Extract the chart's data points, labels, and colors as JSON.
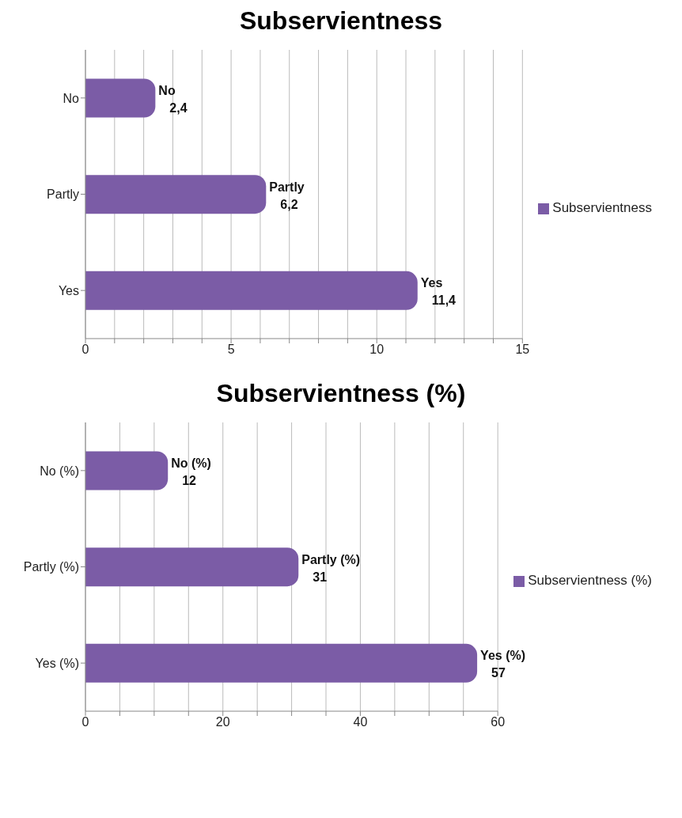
{
  "chart_data": [
    {
      "type": "bar",
      "orientation": "horizontal",
      "title": "Subservientness",
      "categories": [
        "No",
        "Partly",
        "Yes"
      ],
      "series": [
        {
          "name": "Subservientness",
          "color": "#7b5ca6",
          "values": [
            2.4,
            6.2,
            11.4
          ],
          "value_labels": [
            "2,4",
            "6,2",
            "11,4"
          ]
        }
      ],
      "xlim": [
        0,
        15
      ],
      "xticks": [
        0,
        {
          "value": 1,
          "label": null
        },
        {
          "value": 2,
          "label": null
        },
        {
          "value": 3,
          "label": null
        },
        {
          "value": 4,
          "label": null
        },
        5,
        {
          "value": 6,
          "label": null
        },
        {
          "value": 7,
          "label": null
        },
        {
          "value": 8,
          "label": null
        },
        {
          "value": 9,
          "label": null
        },
        10,
        {
          "value": 11,
          "label": null
        },
        {
          "value": 12,
          "label": null
        },
        {
          "value": 13,
          "label": null
        },
        {
          "value": 14,
          "label": null
        },
        15
      ],
      "grid": "x",
      "legend": "right"
    },
    {
      "type": "bar",
      "orientation": "horizontal",
      "title": "Subservientness (%)",
      "categories": [
        "No (%)",
        "Partly (%)",
        "Yes (%)"
      ],
      "series": [
        {
          "name": "Subservientness (%)",
          "color": "#7b5ca6",
          "values": [
            12,
            31,
            57
          ],
          "value_labels": [
            "12",
            "31",
            "57"
          ]
        }
      ],
      "xlim": [
        0,
        60
      ],
      "xticks": [
        0,
        {
          "value": 5,
          "label": null
        },
        {
          "value": 10,
          "label": null
        },
        {
          "value": 15,
          "label": null
        },
        20,
        {
          "value": 25,
          "label": null
        },
        {
          "value": 30,
          "label": null
        },
        {
          "value": 35,
          "label": null
        },
        40,
        {
          "value": 45,
          "label": null
        },
        {
          "value": 50,
          "label": null
        },
        {
          "value": 55,
          "label": null
        },
        60
      ],
      "grid": "x",
      "legend": "right"
    }
  ]
}
